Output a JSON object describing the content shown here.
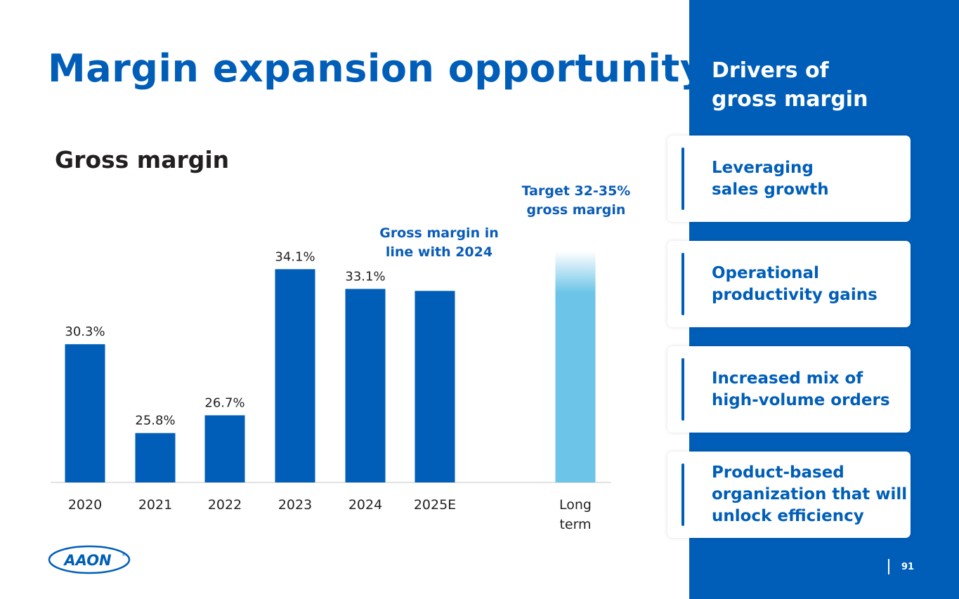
{
  "page": {
    "title": "Margin expansion opportunity",
    "page_number": "91"
  },
  "colors": {
    "brand_blue": "#005eb8",
    "target_light_blue": "#6cc4e8"
  },
  "chart_data": {
    "type": "bar",
    "title": "Gross margin",
    "categories": [
      "2020",
      "2021",
      "2022",
      "2023",
      "2024",
      "2025E",
      "Long term"
    ],
    "category_lines": [
      [
        "2020"
      ],
      [
        "2021"
      ],
      [
        "2022"
      ],
      [
        "2023"
      ],
      [
        "2024"
      ],
      [
        "2025E"
      ],
      [
        "Long",
        "term"
      ]
    ],
    "values": [
      30.3,
      25.8,
      26.7,
      34.1,
      33.1,
      33.0,
      35.0
    ],
    "value_labels": [
      "30.3%",
      "25.8%",
      "26.7%",
      "34.1%",
      "33.1%",
      "",
      ""
    ],
    "target_range": [
      32,
      35
    ],
    "ylim": [
      23.3,
      35
    ],
    "xlabel": "",
    "ylabel": "",
    "grid": false,
    "annotations": {
      "estimate": [
        "Gross margin in",
        "line with 2024"
      ],
      "target": [
        "Target 32-35%",
        "gross margin"
      ]
    }
  },
  "logo": {
    "text": "AAON",
    "registered": "®"
  },
  "drivers": {
    "title_lines": [
      "Drivers of",
      "gross margin"
    ],
    "items": [
      {
        "lines": [
          "Leveraging",
          "sales growth"
        ]
      },
      {
        "lines": [
          "Operational",
          "productivity gains"
        ]
      },
      {
        "lines": [
          "Increased mix of",
          "high-volume orders"
        ]
      },
      {
        "lines": [
          "Product-based",
          "organization that will",
          "unlock efficiency"
        ]
      }
    ]
  }
}
